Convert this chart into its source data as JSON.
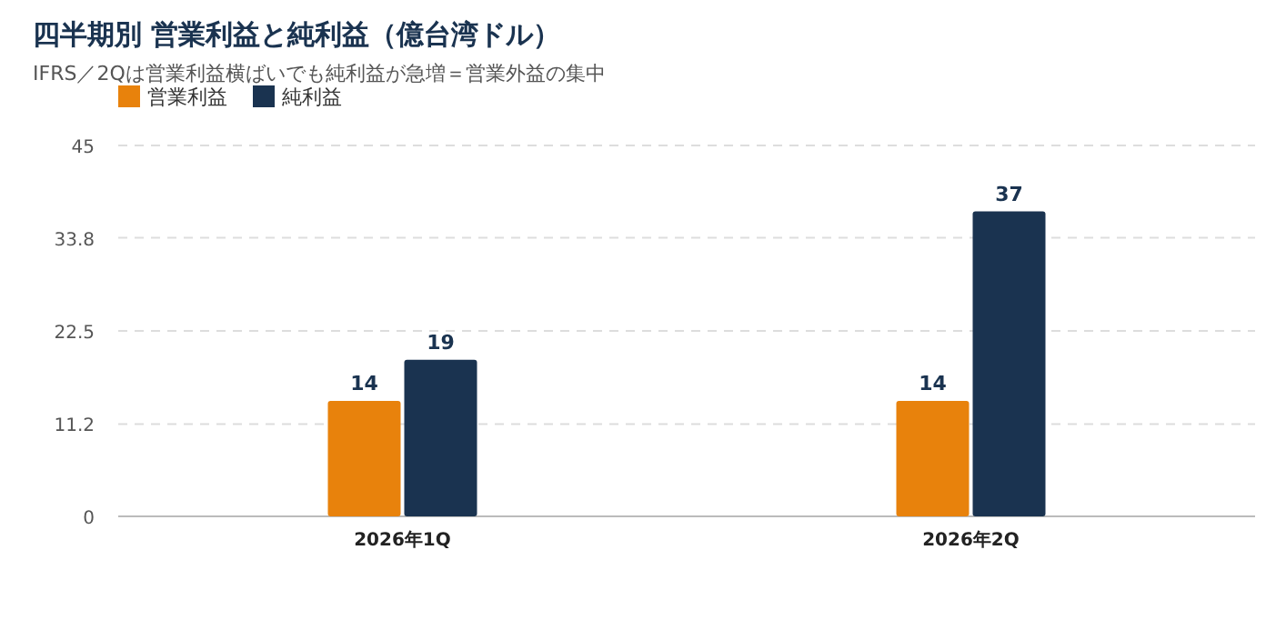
{
  "chart_data": {
    "type": "bar",
    "title": "四半期別 営業利益と純利益（億台湾ドル）",
    "subtitle": "IFRS／2Qは営業利益横ばいでも純利益が急増＝営業外益の集中",
    "categories": [
      "2026年1Q",
      "2026年2Q"
    ],
    "series": [
      {
        "name": "営業利益",
        "color": "#e8820c",
        "values": [
          14,
          14
        ]
      },
      {
        "name": "純利益",
        "color": "#1a3350",
        "values": [
          19,
          37
        ]
      }
    ],
    "ylim": [
      0,
      45
    ],
    "yticks": [
      0,
      11.2,
      22.5,
      33.8,
      45
    ],
    "grid": "y",
    "legend": "top left",
    "data_labels": true
  }
}
